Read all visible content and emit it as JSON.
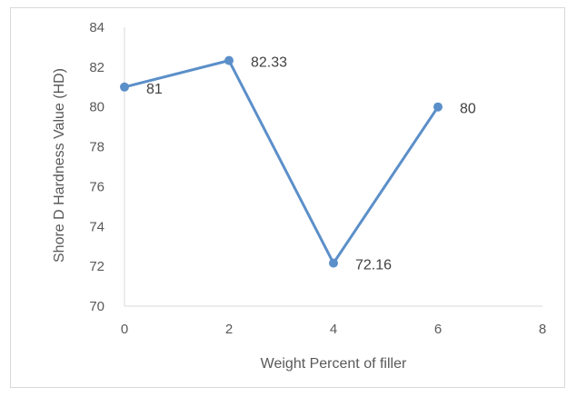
{
  "chart_data": {
    "type": "line",
    "title": "",
    "xlabel": "Weight Percent of filler",
    "ylabel": "Shore D Hardness Value (HD)",
    "xlim": [
      0,
      8
    ],
    "ylim": [
      70,
      84
    ],
    "x_ticks": [
      0,
      2,
      4,
      6,
      8
    ],
    "y_ticks": [
      70,
      72,
      74,
      76,
      78,
      80,
      82,
      84
    ],
    "grid": false,
    "legend": "none",
    "series": [
      {
        "color": "#5b8fc9",
        "points": [
          {
            "x": 0,
            "y": 81,
            "label": "81"
          },
          {
            "x": 2,
            "y": 82.33,
            "label": "82.33"
          },
          {
            "x": 4,
            "y": 72.16,
            "label": "72.16"
          },
          {
            "x": 6,
            "y": 80,
            "label": "80"
          }
        ]
      }
    ]
  }
}
